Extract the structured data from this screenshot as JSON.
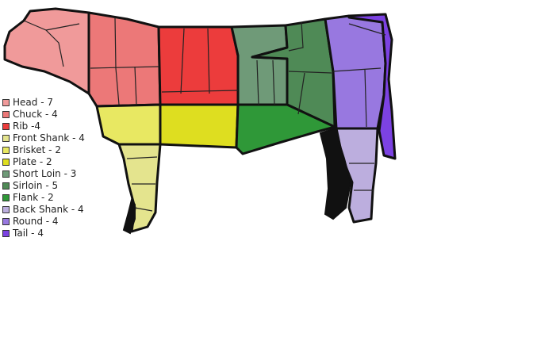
{
  "cuts": [
    {
      "key": "head",
      "label": "Head - 7",
      "color": "#f09a9a"
    },
    {
      "key": "chuck",
      "label": "Chuck - 4",
      "color": "#ec7878"
    },
    {
      "key": "rib",
      "label": "Rib -4",
      "color": "#ec3c3c"
    },
    {
      "key": "front-shank",
      "label": "Front Shank - 4",
      "color": "#e4e48e"
    },
    {
      "key": "brisket",
      "label": "Brisket - 2",
      "color": "#e8e862"
    },
    {
      "key": "plate",
      "label": "Plate - 2",
      "color": "#dede20"
    },
    {
      "key": "short-loin",
      "label": "Short Loin - 3",
      "color": "#6f9a78"
    },
    {
      "key": "sirloin",
      "label": "Sirloin - 5",
      "color": "#4f8a56"
    },
    {
      "key": "flank",
      "label": "Flank - 2",
      "color": "#2f9838"
    },
    {
      "key": "back-shank",
      "label": "Back Shank - 4",
      "color": "#bcaede"
    },
    {
      "key": "round",
      "label": "Round - 4",
      "color": "#9878e0"
    },
    {
      "key": "tail",
      "label": "Tail - 4",
      "color": "#7c42e2"
    }
  ],
  "hoof_color": "#111111"
}
